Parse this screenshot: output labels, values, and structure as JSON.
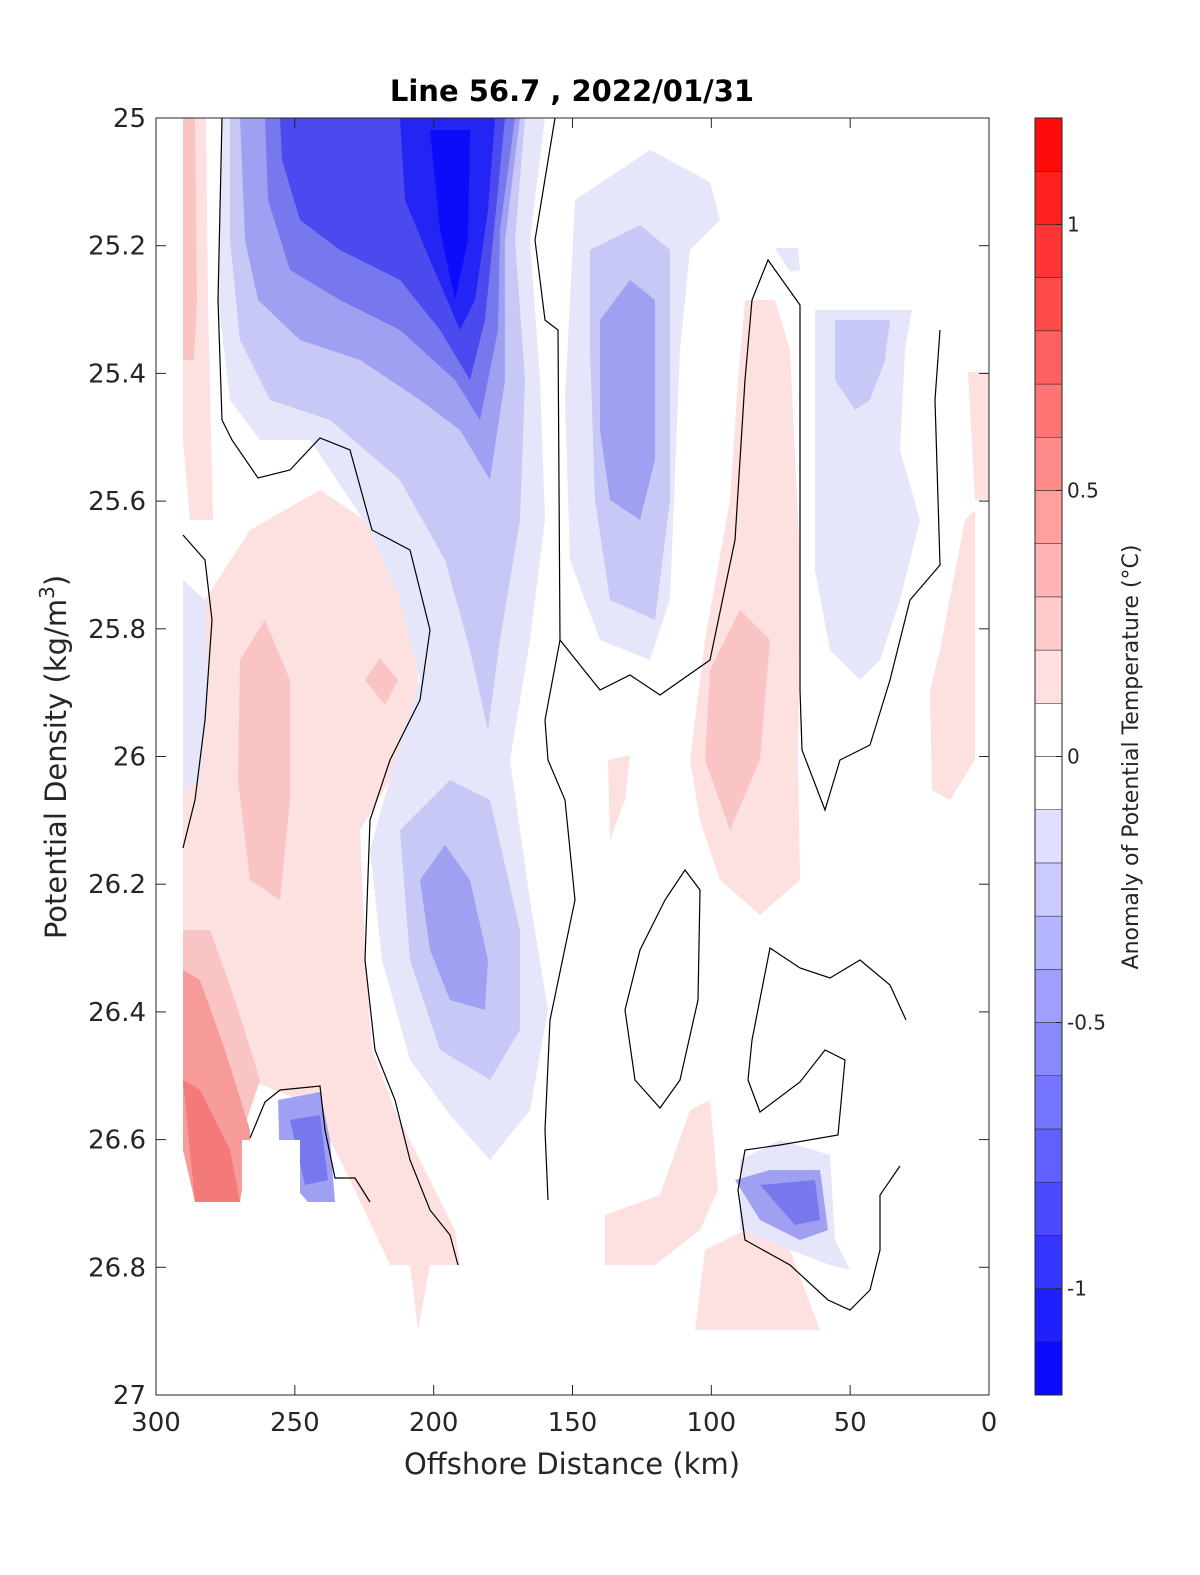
{
  "chart_data": {
    "type": "heatmap",
    "title": "Line 56.7 , 2022/01/31",
    "xlabel": "Offshore Distance (km)",
    "ylabel_main": "Potential Density (kg/m",
    "ylabel_sup": "3",
    "ylabel_close": ")",
    "colorbar_label": "Anomaly of Potential Temperature (°C)",
    "xlim": [
      300,
      0
    ],
    "ylim": [
      25,
      27
    ],
    "x_reversed": true,
    "y_reversed": true,
    "x_ticks": [
      300,
      250,
      200,
      150,
      100,
      50,
      0
    ],
    "x_tick_labels": [
      "300",
      "250",
      "200",
      "150",
      "100",
      "50",
      "0"
    ],
    "y_ticks": [
      25,
      25.2,
      25.4,
      25.6,
      25.8,
      26,
      26.2,
      26.4,
      26.6,
      26.8,
      27
    ],
    "y_tick_labels": [
      "25",
      "25.2",
      "25.4",
      "25.6",
      "25.8",
      "26",
      "26.2",
      "26.4",
      "26.6",
      "26.8",
      "27"
    ],
    "colorbar": {
      "range": [
        -1.2,
        1.2
      ],
      "step": 0.1,
      "ticks": [
        1,
        0.5,
        0,
        -0.5,
        -1
      ],
      "tick_labels": [
        "1",
        "0.5",
        "0",
        "-0.5",
        "-1"
      ],
      "colormap": "blue-white-red",
      "color_neg": "#0000ff",
      "color_zero": "#ffffff",
      "color_pos": "#ff0000"
    },
    "contour_line_color": "#000000",
    "features": [
      {
        "name": "cold core",
        "x": [
          215,
          165
        ],
        "y": [
          25.0,
          25.7
        ],
        "min_anomaly": -1.0
      },
      {
        "name": "cold lens",
        "x": [
          170,
          130
        ],
        "y": [
          25.85,
          26.5
        ],
        "min_anomaly": -0.5
      },
      {
        "name": "cold lens",
        "x": [
          155,
          110
        ],
        "y": [
          25.2,
          25.9
        ],
        "min_anomaly": -0.4
      },
      {
        "name": "warm band",
        "x": [
          300,
          260
        ],
        "y": [
          26.3,
          26.7
        ],
        "max_anomaly": 0.6
      },
      {
        "name": "cold patch",
        "x": [
          90,
          60
        ],
        "y": [
          26.6,
          26.8
        ],
        "min_anomaly": -0.6
      }
    ]
  }
}
